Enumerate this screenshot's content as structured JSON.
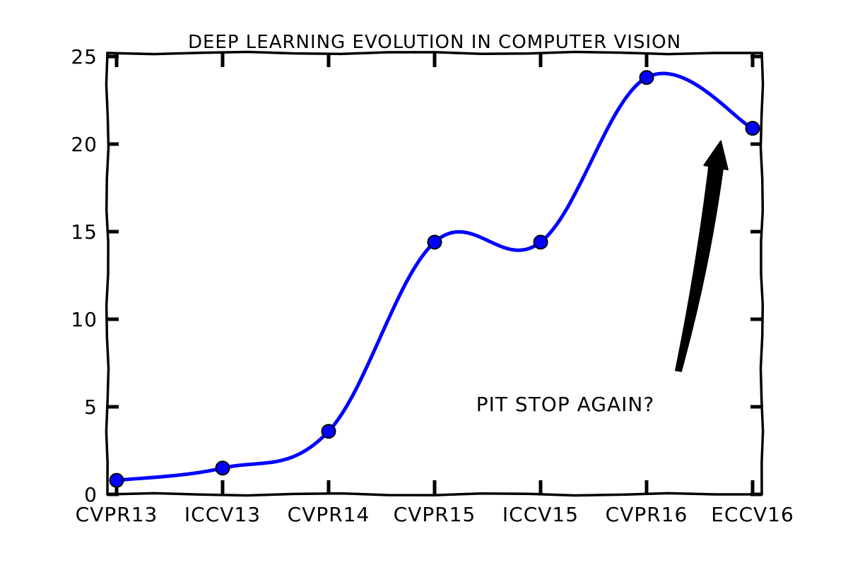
{
  "chart_data": {
    "type": "line",
    "title": "DEEP LEARNING EVOLUTION IN COMPUTER VISION",
    "xlabel": "",
    "ylabel": "",
    "categories": [
      "CVPR13",
      "ICCV13",
      "CVPR14",
      "CVPR15",
      "ICCV15",
      "CVPR16",
      "ECCV16"
    ],
    "series": [
      {
        "values": [
          0.8,
          1.5,
          3.6,
          14.4,
          14.4,
          23.8,
          20.9
        ],
        "color": "#0000ff"
      }
    ],
    "ylim": [
      0,
      25
    ],
    "yticks": [
      "0",
      "5",
      "10",
      "15",
      "20",
      "25"
    ],
    "grid": false,
    "legend": "none",
    "annotation": {
      "text": "PIT STOP AGAIN?",
      "points_to_category": "ECCV16"
    }
  }
}
